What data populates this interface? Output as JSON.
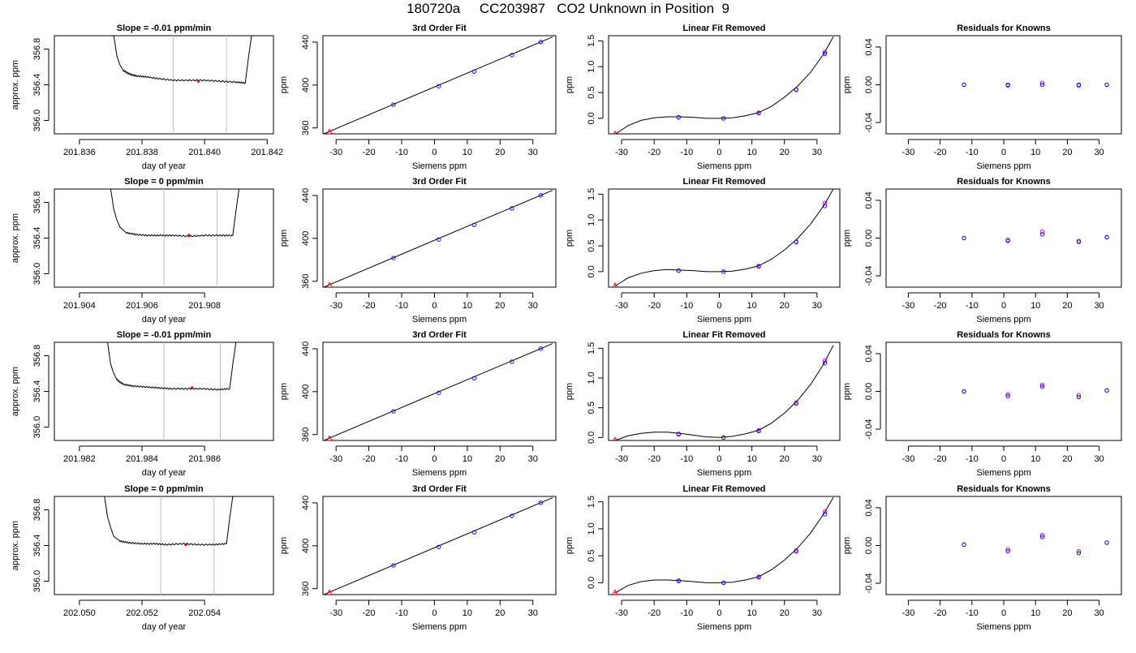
{
  "figure": {
    "title": "180720a     CC203987   CO2 Unknown in Position  9"
  },
  "chart_data": [
    {
      "type": "line",
      "title": "Slope =  -0.01  ppm/min",
      "xlabel": "day of year",
      "ylabel": "approx. ppm",
      "xlim": [
        201.8352,
        201.8422
      ],
      "ylim": [
        355.85,
        356.95
      ],
      "xticks": [
        201.836,
        201.838,
        201.84,
        201.842
      ],
      "xtick_decimals": 3,
      "yticks": [
        356.0,
        356.4,
        356.8
      ],
      "ytick_decimals": 1,
      "trace_x": [
        201.8371,
        201.8372,
        201.8373,
        201.8374,
        201.8376,
        201.8378,
        201.8381,
        201.8385,
        201.839,
        201.8395,
        201.84,
        201.8405,
        201.841,
        201.8413,
        201.8414,
        201.8415
      ],
      "trace_y": [
        356.95,
        356.72,
        356.62,
        356.56,
        356.52,
        356.5,
        356.49,
        356.47,
        356.45,
        356.45,
        356.45,
        356.44,
        356.43,
        356.42,
        356.7,
        356.95
      ],
      "vlines": [
        201.839,
        201.8407
      ],
      "marker": {
        "x": 201.8398,
        "y": 356.44
      }
    },
    {
      "type": "scatter",
      "title": "3rd Order Fit",
      "xlabel": "Siemens ppm",
      "ylabel": "ppm",
      "xlim": [
        -34,
        37
      ],
      "ylim": [
        354.5,
        446
      ],
      "xticks": [
        -30,
        -20,
        -10,
        0,
        10,
        20,
        30
      ],
      "xtick_decimals": 0,
      "yticks": [
        360,
        400,
        440
      ],
      "ytick_decimals": 0,
      "points_x": [
        -12.5,
        1.3,
        12.1,
        23.6,
        32.4
      ],
      "points_y": [
        381.7,
        398.9,
        412.5,
        427.9,
        440.1
      ],
      "unknown": {
        "x": -32.0,
        "y": 356.4
      },
      "fit_line": [
        [
          -34,
          354.2
        ],
        [
          36,
          444.8
        ]
      ]
    },
    {
      "type": "scatter",
      "title": "Linear Fit Removed",
      "xlabel": "Siemens ppm",
      "ylabel": "ppm",
      "xlim": [
        -34,
        37
      ],
      "ylim": [
        -0.3,
        1.6
      ],
      "xticks": [
        -30,
        -20,
        -10,
        0,
        10,
        20,
        30
      ],
      "xtick_decimals": 0,
      "yticks": [
        0.0,
        0.5,
        1.0,
        1.5
      ],
      "ytick_decimals": 1,
      "points_x": [
        -12.5,
        1.3,
        12.1,
        23.6,
        32.4
      ],
      "points_y": [
        0.02,
        0.0,
        0.1,
        0.55,
        1.25
      ],
      "points2_y": [
        0.02,
        0.0,
        0.11,
        0.56,
        1.28
      ],
      "unknown": {
        "x": -32.0,
        "y": -0.3
      },
      "curve": [
        [
          -32,
          -0.31
        ],
        [
          -28,
          -0.14
        ],
        [
          -24,
          -0.04
        ],
        [
          -20,
          0.01
        ],
        [
          -16,
          0.03
        ],
        [
          -12,
          0.03
        ],
        [
          -8,
          0.02
        ],
        [
          -4,
          0.0
        ],
        [
          0,
          0.0
        ],
        [
          4,
          0.01
        ],
        [
          8,
          0.05
        ],
        [
          12,
          0.11
        ],
        [
          16,
          0.23
        ],
        [
          20,
          0.41
        ],
        [
          24,
          0.62
        ],
        [
          28,
          0.89
        ],
        [
          32,
          1.24
        ],
        [
          35,
          1.58
        ]
      ]
    },
    {
      "type": "scatter",
      "title": "Residuals for Knowns",
      "xlabel": "Siemens ppm",
      "ylabel": "ppm",
      "xlim": [
        -37,
        37
      ],
      "ylim": [
        -0.052,
        0.052
      ],
      "xticks": [
        -30,
        -20,
        -10,
        0,
        10,
        20,
        30
      ],
      "xtick_decimals": 0,
      "yticks": [
        -0.04,
        0.0,
        0.04
      ],
      "ytick_decimals": 2,
      "points_x": [
        -12.5,
        1.3,
        12.1,
        23.6,
        32.4
      ],
      "points_y": [
        0.0,
        0.0,
        0.0,
        0.0,
        0.0
      ],
      "points2_y": [
        0.0,
        -0.001,
        0.002,
        -0.001,
        0.0
      ]
    },
    {
      "type": "line",
      "title": "Slope =  0  ppm/min",
      "xlabel": "day of year",
      "ylabel": "approx. ppm",
      "xlim": [
        201.9032,
        201.9102
      ],
      "ylim": [
        355.85,
        356.95
      ],
      "xticks": [
        201.904,
        201.906,
        201.908
      ],
      "xtick_decimals": 3,
      "yticks": [
        356.0,
        356.4,
        356.8
      ],
      "ytick_decimals": 1,
      "trace_x": [
        201.905,
        201.9051,
        201.9052,
        201.9053,
        201.9055,
        201.9058,
        201.9062,
        201.9066,
        201.907,
        201.9075,
        201.908,
        201.9085,
        201.9089,
        201.909,
        201.9091
      ],
      "trace_y": [
        356.95,
        356.72,
        356.6,
        356.52,
        356.46,
        356.44,
        356.43,
        356.43,
        356.43,
        356.42,
        356.43,
        356.43,
        356.43,
        356.7,
        356.95
      ],
      "vlines": [
        201.9067,
        201.9084
      ],
      "marker": {
        "x": 201.9075,
        "y": 356.43
      }
    },
    {
      "type": "scatter",
      "title": "3rd Order Fit",
      "xlabel": "Siemens ppm",
      "ylabel": "ppm",
      "xlim": [
        -34,
        37
      ],
      "ylim": [
        354.5,
        446
      ],
      "xticks": [
        -30,
        -20,
        -10,
        0,
        10,
        20,
        30
      ],
      "xtick_decimals": 0,
      "yticks": [
        360,
        400,
        440
      ],
      "ytick_decimals": 0,
      "points_x": [
        -12.5,
        1.3,
        12.1,
        23.6,
        32.4
      ],
      "points_y": [
        381.7,
        398.9,
        412.5,
        427.9,
        440.1
      ],
      "unknown": {
        "x": -32.0,
        "y": 356.4
      },
      "fit_line": [
        [
          -34,
          354.2
        ],
        [
          36,
          444.8
        ]
      ]
    },
    {
      "type": "scatter",
      "title": "Linear Fit Removed",
      "xlabel": "Siemens ppm",
      "ylabel": "ppm",
      "xlim": [
        -34,
        37
      ],
      "ylim": [
        -0.3,
        1.6
      ],
      "xticks": [
        -30,
        -20,
        -10,
        0,
        10,
        20,
        30
      ],
      "xtick_decimals": 0,
      "yticks": [
        0.0,
        0.5,
        1.0,
        1.5
      ],
      "ytick_decimals": 1,
      "points_x": [
        -12.5,
        1.3,
        12.1,
        23.6,
        32.4
      ],
      "points_y": [
        0.02,
        0.0,
        0.1,
        0.58,
        1.27
      ],
      "points2_y": [
        0.02,
        0.0,
        0.11,
        0.57,
        1.33
      ],
      "unknown": {
        "x": -32.0,
        "y": -0.27
      },
      "curve": [
        [
          -32,
          -0.28
        ],
        [
          -28,
          -0.12
        ],
        [
          -24,
          -0.03
        ],
        [
          -20,
          0.02
        ],
        [
          -16,
          0.04
        ],
        [
          -12,
          0.03
        ],
        [
          -8,
          0.02
        ],
        [
          -4,
          0.0
        ],
        [
          0,
          0.0
        ],
        [
          4,
          0.01
        ],
        [
          8,
          0.05
        ],
        [
          12,
          0.11
        ],
        [
          16,
          0.24
        ],
        [
          20,
          0.42
        ],
        [
          24,
          0.64
        ],
        [
          28,
          0.92
        ],
        [
          32,
          1.27
        ],
        [
          35,
          1.6
        ]
      ]
    },
    {
      "type": "scatter",
      "title": "Residuals for Knowns",
      "xlabel": "Siemens ppm",
      "ylabel": "ppm",
      "xlim": [
        -37,
        37
      ],
      "ylim": [
        -0.052,
        0.052
      ],
      "xticks": [
        -30,
        -20,
        -10,
        0,
        10,
        20,
        30
      ],
      "xtick_decimals": 0,
      "yticks": [
        -0.04,
        0.0,
        0.04
      ],
      "ytick_decimals": 2,
      "points_x": [
        -12.5,
        1.3,
        12.1,
        23.6,
        32.4
      ],
      "points_y": [
        0.0,
        -0.003,
        0.004,
        -0.004,
        0.001
      ],
      "points2_y": [
        0.0,
        -0.002,
        0.007,
        -0.003,
        0.001
      ]
    },
    {
      "type": "line",
      "title": "Slope =  -0.01  ppm/min",
      "xlabel": "day of year",
      "ylabel": "approx. ppm",
      "xlim": [
        201.9812,
        201.9882
      ],
      "ylim": [
        355.85,
        356.95
      ],
      "xticks": [
        201.982,
        201.984,
        201.986
      ],
      "xtick_decimals": 3,
      "yticks": [
        356.0,
        356.4,
        356.8
      ],
      "ytick_decimals": 1,
      "trace_x": [
        201.9829,
        201.983,
        201.9831,
        201.9832,
        201.9834,
        201.9837,
        201.9841,
        201.9845,
        201.9849,
        201.9854,
        201.9859,
        201.9864,
        201.9868,
        201.9869,
        201.987
      ],
      "trace_y": [
        356.95,
        356.7,
        356.6,
        356.53,
        356.48,
        356.46,
        356.45,
        356.44,
        356.43,
        356.43,
        356.43,
        356.42,
        356.43,
        356.7,
        356.95
      ],
      "vlines": [
        201.9847,
        201.9865
      ],
      "marker": {
        "x": 201.9856,
        "y": 356.44
      }
    },
    {
      "type": "scatter",
      "title": "3rd Order Fit",
      "xlabel": "Siemens ppm",
      "ylabel": "ppm",
      "xlim": [
        -34,
        37
      ],
      "ylim": [
        354.5,
        446
      ],
      "xticks": [
        -30,
        -20,
        -10,
        0,
        10,
        20,
        30
      ],
      "xtick_decimals": 0,
      "yticks": [
        360,
        400,
        440
      ],
      "ytick_decimals": 0,
      "points_x": [
        -12.5,
        1.3,
        12.1,
        23.6,
        32.4
      ],
      "points_y": [
        381.7,
        398.9,
        412.5,
        427.9,
        440.1
      ],
      "unknown": {
        "x": -32.0,
        "y": 356.4
      },
      "fit_line": [
        [
          -34,
          354.2
        ],
        [
          36,
          444.8
        ]
      ]
    },
    {
      "type": "scatter",
      "title": "Linear Fit Removed",
      "xlabel": "Siemens ppm",
      "ylabel": "ppm",
      "xlim": [
        -34,
        37
      ],
      "ylim": [
        -0.05,
        1.6
      ],
      "xticks": [
        -30,
        -20,
        -10,
        0,
        10,
        20,
        30
      ],
      "xtick_decimals": 0,
      "yticks": [
        0.0,
        0.5,
        1.0,
        1.5
      ],
      "ytick_decimals": 1,
      "points_x": [
        -12.5,
        1.3,
        12.1,
        23.6,
        32.4
      ],
      "points_y": [
        0.06,
        0.0,
        0.11,
        0.57,
        1.25
      ],
      "points2_y": [
        0.05,
        0.0,
        0.12,
        0.59,
        1.29
      ],
      "unknown": {
        "x": -32.0,
        "y": -0.04
      },
      "curve": [
        [
          -32,
          -0.05
        ],
        [
          -28,
          0.03
        ],
        [
          -24,
          0.07
        ],
        [
          -20,
          0.09
        ],
        [
          -16,
          0.09
        ],
        [
          -12,
          0.07
        ],
        [
          -8,
          0.04
        ],
        [
          -4,
          0.01
        ],
        [
          0,
          0.0
        ],
        [
          4,
          0.02
        ],
        [
          8,
          0.06
        ],
        [
          12,
          0.12
        ],
        [
          16,
          0.24
        ],
        [
          20,
          0.41
        ],
        [
          24,
          0.62
        ],
        [
          28,
          0.89
        ],
        [
          32,
          1.23
        ],
        [
          35,
          1.55
        ]
      ]
    },
    {
      "type": "scatter",
      "title": "Residuals for Knowns",
      "xlabel": "Siemens ppm",
      "ylabel": "ppm",
      "xlim": [
        -37,
        37
      ],
      "ylim": [
        -0.052,
        0.052
      ],
      "xticks": [
        -30,
        -20,
        -10,
        0,
        10,
        20,
        30
      ],
      "xtick_decimals": 0,
      "yticks": [
        -0.04,
        0.0,
        0.04
      ],
      "ytick_decimals": 2,
      "points_x": [
        -12.5,
        1.3,
        12.1,
        23.6,
        32.4
      ],
      "points_y": [
        0.0,
        -0.005,
        0.005,
        -0.006,
        0.001
      ],
      "points2_y": [
        0.0,
        -0.003,
        0.007,
        -0.004,
        0.001
      ]
    },
    {
      "type": "line",
      "title": "Slope =  0  ppm/min",
      "xlabel": "day of year",
      "ylabel": "approx. ppm",
      "xlim": [
        202.0492,
        202.0562
      ],
      "ylim": [
        355.85,
        356.95
      ],
      "xticks": [
        202.05,
        202.052,
        202.054
      ],
      "xtick_decimals": 3,
      "yticks": [
        356.0,
        356.4,
        356.8
      ],
      "ytick_decimals": 1,
      "trace_x": [
        202.0508,
        202.0509,
        202.051,
        202.0511,
        202.0513,
        202.0516,
        202.052,
        202.0524,
        202.0528,
        202.0533,
        202.0538,
        202.0543,
        202.0547,
        202.0548,
        202.0549
      ],
      "trace_y": [
        356.95,
        356.72,
        356.6,
        356.5,
        356.45,
        356.43,
        356.42,
        356.42,
        356.41,
        356.42,
        356.41,
        356.41,
        356.42,
        356.7,
        356.95
      ],
      "vlines": [
        202.0526,
        202.0543
      ],
      "marker": {
        "x": 202.0534,
        "y": 356.41
      }
    },
    {
      "type": "scatter",
      "title": "3rd Order Fit",
      "xlabel": "Siemens ppm",
      "ylabel": "ppm",
      "xlim": [
        -34,
        37
      ],
      "ylim": [
        354.5,
        446
      ],
      "xticks": [
        -30,
        -20,
        -10,
        0,
        10,
        20,
        30
      ],
      "xtick_decimals": 0,
      "yticks": [
        360,
        400,
        440
      ],
      "ytick_decimals": 0,
      "points_x": [
        -12.5,
        1.3,
        12.1,
        23.6,
        32.4
      ],
      "points_y": [
        381.7,
        398.9,
        412.5,
        427.9,
        440.1
      ],
      "unknown": {
        "x": -32.0,
        "y": 356.4
      },
      "fit_line": [
        [
          -34,
          354.2
        ],
        [
          36,
          444.8
        ]
      ]
    },
    {
      "type": "scatter",
      "title": "Linear Fit Removed",
      "xlabel": "Siemens ppm",
      "ylabel": "ppm",
      "xlim": [
        -34,
        37
      ],
      "ylim": [
        -0.22,
        1.6
      ],
      "xticks": [
        -30,
        -20,
        -10,
        0,
        10,
        20,
        30
      ],
      "xtick_decimals": 0,
      "yticks": [
        0.0,
        0.5,
        1.0,
        1.5
      ],
      "ytick_decimals": 1,
      "points_x": [
        -12.5,
        1.3,
        12.1,
        23.6,
        32.4
      ],
      "points_y": [
        0.04,
        0.0,
        0.1,
        0.58,
        1.27
      ],
      "points2_y": [
        0.03,
        0.0,
        0.11,
        0.6,
        1.32
      ],
      "unknown": {
        "x": -32.0,
        "y": -0.18
      },
      "curve": [
        [
          -32,
          -0.19
        ],
        [
          -28,
          -0.05
        ],
        [
          -24,
          0.02
        ],
        [
          -20,
          0.05
        ],
        [
          -16,
          0.05
        ],
        [
          -12,
          0.04
        ],
        [
          -8,
          0.02
        ],
        [
          -4,
          0.0
        ],
        [
          0,
          0.0
        ],
        [
          4,
          0.01
        ],
        [
          8,
          0.05
        ],
        [
          12,
          0.11
        ],
        [
          16,
          0.24
        ],
        [
          20,
          0.42
        ],
        [
          24,
          0.64
        ],
        [
          28,
          0.92
        ],
        [
          32,
          1.27
        ],
        [
          35,
          1.58
        ]
      ]
    },
    {
      "type": "scatter",
      "title": "Residuals for Knowns",
      "xlabel": "Siemens ppm",
      "ylabel": "ppm",
      "xlim": [
        -37,
        37
      ],
      "ylim": [
        -0.052,
        0.052
      ],
      "xticks": [
        -30,
        -20,
        -10,
        0,
        10,
        20,
        30
      ],
      "xtick_decimals": 0,
      "yticks": [
        -0.04,
        0.0,
        0.04
      ],
      "ytick_decimals": 2,
      "points_x": [
        -12.5,
        1.3,
        12.1,
        23.6,
        32.4
      ],
      "points_y": [
        0.001,
        -0.006,
        0.009,
        -0.008,
        0.003
      ],
      "points2_y": [
        0.001,
        -0.004,
        0.011,
        -0.006,
        0.003
      ]
    }
  ],
  "colors": {
    "line": "#000000",
    "known_points": "#0000ff",
    "known_points_alt": "#c000c0",
    "unknown_point": "#ff0000",
    "vline": "#bebebe"
  }
}
